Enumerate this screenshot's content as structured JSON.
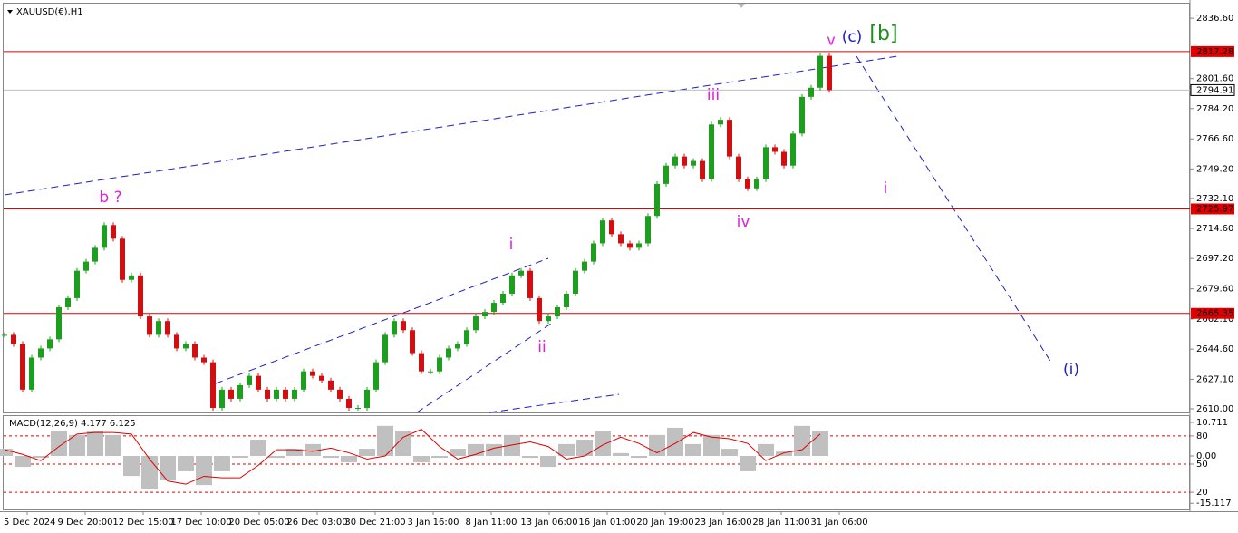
{
  "chart_data": {
    "type": "candlestick",
    "symbol": "XAUUSD(€),H1",
    "up_color": "#1e9e1e",
    "down_color": "#d01010",
    "ylim": [
      2607.35,
      2845.1
    ],
    "yticks": [
      2836.6,
      2801.6,
      2784.2,
      2766.6,
      2749.2,
      2732.1,
      2714.6,
      2697.2,
      2679.6,
      2662.1,
      2644.6,
      2627.1,
      2610.0
    ],
    "ytick_labels": [
      "2836.60",
      "2801.60",
      "2784.20",
      "2766.60",
      "2749.20",
      "2732.10",
      "2714.60",
      "2697.20",
      "2679.60",
      "2662.10",
      "2644.60",
      "2627.10",
      "2610.00"
    ],
    "x_labels": [
      "5 Dec 2024",
      "9 Dec 20:00",
      "12 Dec 15:00",
      "17 Dec 10:00",
      "20 Dec 05:00",
      "26 Dec 03:00",
      "30 Dec 21:00",
      "3 Jan 16:00",
      "8 Jan 11:00",
      "13 Jan 06:00",
      "16 Jan 01:00",
      "20 Jan 19:00",
      "23 Jan 16:00",
      "28 Jan 11:00",
      "31 Jan 06:00"
    ],
    "series": [
      {
        "name": "XAUUSD",
        "values": [
          2652.9,
          2647.6,
          2621.1,
          2639.7,
          2645.0,
          2650.3,
          2668.9,
          2674.2,
          2690.1,
          2695.4,
          2703.4,
          2716.6,
          2708.7,
          2684.8,
          2687.4,
          2663.6,
          2652.9,
          2660.9,
          2652.9,
          2645.0,
          2647.6,
          2639.7,
          2637.0,
          2610.5,
          2621.1,
          2615.8,
          2623.7,
          2629.1,
          2621.1,
          2615.8,
          2621.1,
          2615.8,
          2621.1,
          2631.7,
          2629.1,
          2626.4,
          2621.1,
          2615.8,
          2610.5,
          2610.5,
          2621.1,
          2637.0,
          2652.9,
          2660.9,
          2655.6,
          2642.3,
          2631.7,
          2631.7,
          2639.7,
          2645.0,
          2647.6,
          2655.6,
          2663.6,
          2666.2,
          2671.5,
          2676.8,
          2687.4,
          2690.1,
          2674.2,
          2660.9,
          2663.6,
          2668.9,
          2676.8,
          2690.1,
          2695.4,
          2706.0,
          2719.3,
          2711.3,
          2706.0,
          2703.4,
          2706.0,
          2721.9,
          2740.5,
          2751.1,
          2756.4,
          2751.1,
          2753.8,
          2743.2,
          2775.0,
          2777.7,
          2756.4,
          2743.2,
          2737.9,
          2743.2,
          2761.8,
          2759.1,
          2751.1,
          2769.7,
          2791.0,
          2796.3,
          2814.8,
          2794.91
        ]
      }
    ],
    "levels": [
      {
        "value": 2817.28,
        "color": "#e00000"
      },
      {
        "value": 2725.97,
        "color": "#e00000"
      },
      {
        "value": 2665.35,
        "color": "#e00000"
      }
    ],
    "current_price": {
      "value": 2794.91,
      "color": "#c0c0c0"
    },
    "annotations": [
      {
        "text": "v",
        "color": "#e020e0"
      },
      {
        "text": "(c)",
        "color": "#2020c0"
      },
      {
        "text": "[b]",
        "color": "#1e8c1e"
      },
      {
        "text": "iii",
        "color": "#e020e0"
      },
      {
        "text": "b ?",
        "color": "#e020e0"
      },
      {
        "text": "i",
        "color": "#e020e0"
      },
      {
        "text": "ii",
        "color": "#e020e0"
      },
      {
        "text": "iv",
        "color": "#e020e0"
      },
      {
        "text": "i",
        "color": "#e020e0"
      },
      {
        "text": "(i)",
        "color": "#2020c0"
      }
    ],
    "macd": {
      "title": "MACD(12,26,9) 4.177 6.125",
      "ylim": [
        -17.08,
        12.45
      ],
      "yticks": [
        10.711,
        {
          "value": 6.4,
          "label": "80"
        },
        {
          "value": 0,
          "label": "0.00"
        },
        {
          "value": -2.6,
          "label": "50"
        },
        {
          "value": -11.6,
          "label": "20"
        },
        -15.117
      ],
      "levels": [
        6.4,
        -2.6,
        -11.6
      ],
      "series": [
        {
          "name": "MACD",
          "color": "#c0c0c0",
          "values": [
            2.3,
            -3.5,
            -0.6,
            8.1,
            6.7,
            8.1,
            6.7,
            -6.4,
            -10.7,
            -7.8,
            -4.9,
            -9.3,
            -4.9,
            -0.6,
            5.2,
            -0.6,
            2.3,
            3.8,
            -0.6,
            -2.0,
            2.3,
            9.6,
            8.1,
            -2.0,
            -0.6,
            2.3,
            3.8,
            3.8,
            6.7,
            -0.6,
            -3.5,
            3.8,
            5.2,
            8.1,
            0.9,
            -0.6,
            6.7,
            9.0,
            3.8,
            6.7,
            2.3,
            -4.9,
            3.8,
            1.4,
            9.6,
            8.1
          ]
        },
        {
          "name": "Signal",
          "color": "#e00000",
          "values": [
            2.0,
            0.5,
            -1.5,
            3.0,
            7.0,
            7.5,
            7.5,
            7.0,
            -1.0,
            -8.0,
            -9.0,
            -6.5,
            -7.0,
            -7.0,
            -3.0,
            2.0,
            2.0,
            1.5,
            2.5,
            1.0,
            -1.0,
            0.0,
            6.0,
            8.5,
            3.0,
            -1.0,
            0.5,
            2.5,
            3.5,
            4.5,
            3.0,
            -1.0,
            0.0,
            3.5,
            6.0,
            4.0,
            1.0,
            4.0,
            7.5,
            6.0,
            5.5,
            4.0,
            -1.5,
            1.0,
            2.0,
            7.0
          ]
        }
      ]
    }
  }
}
